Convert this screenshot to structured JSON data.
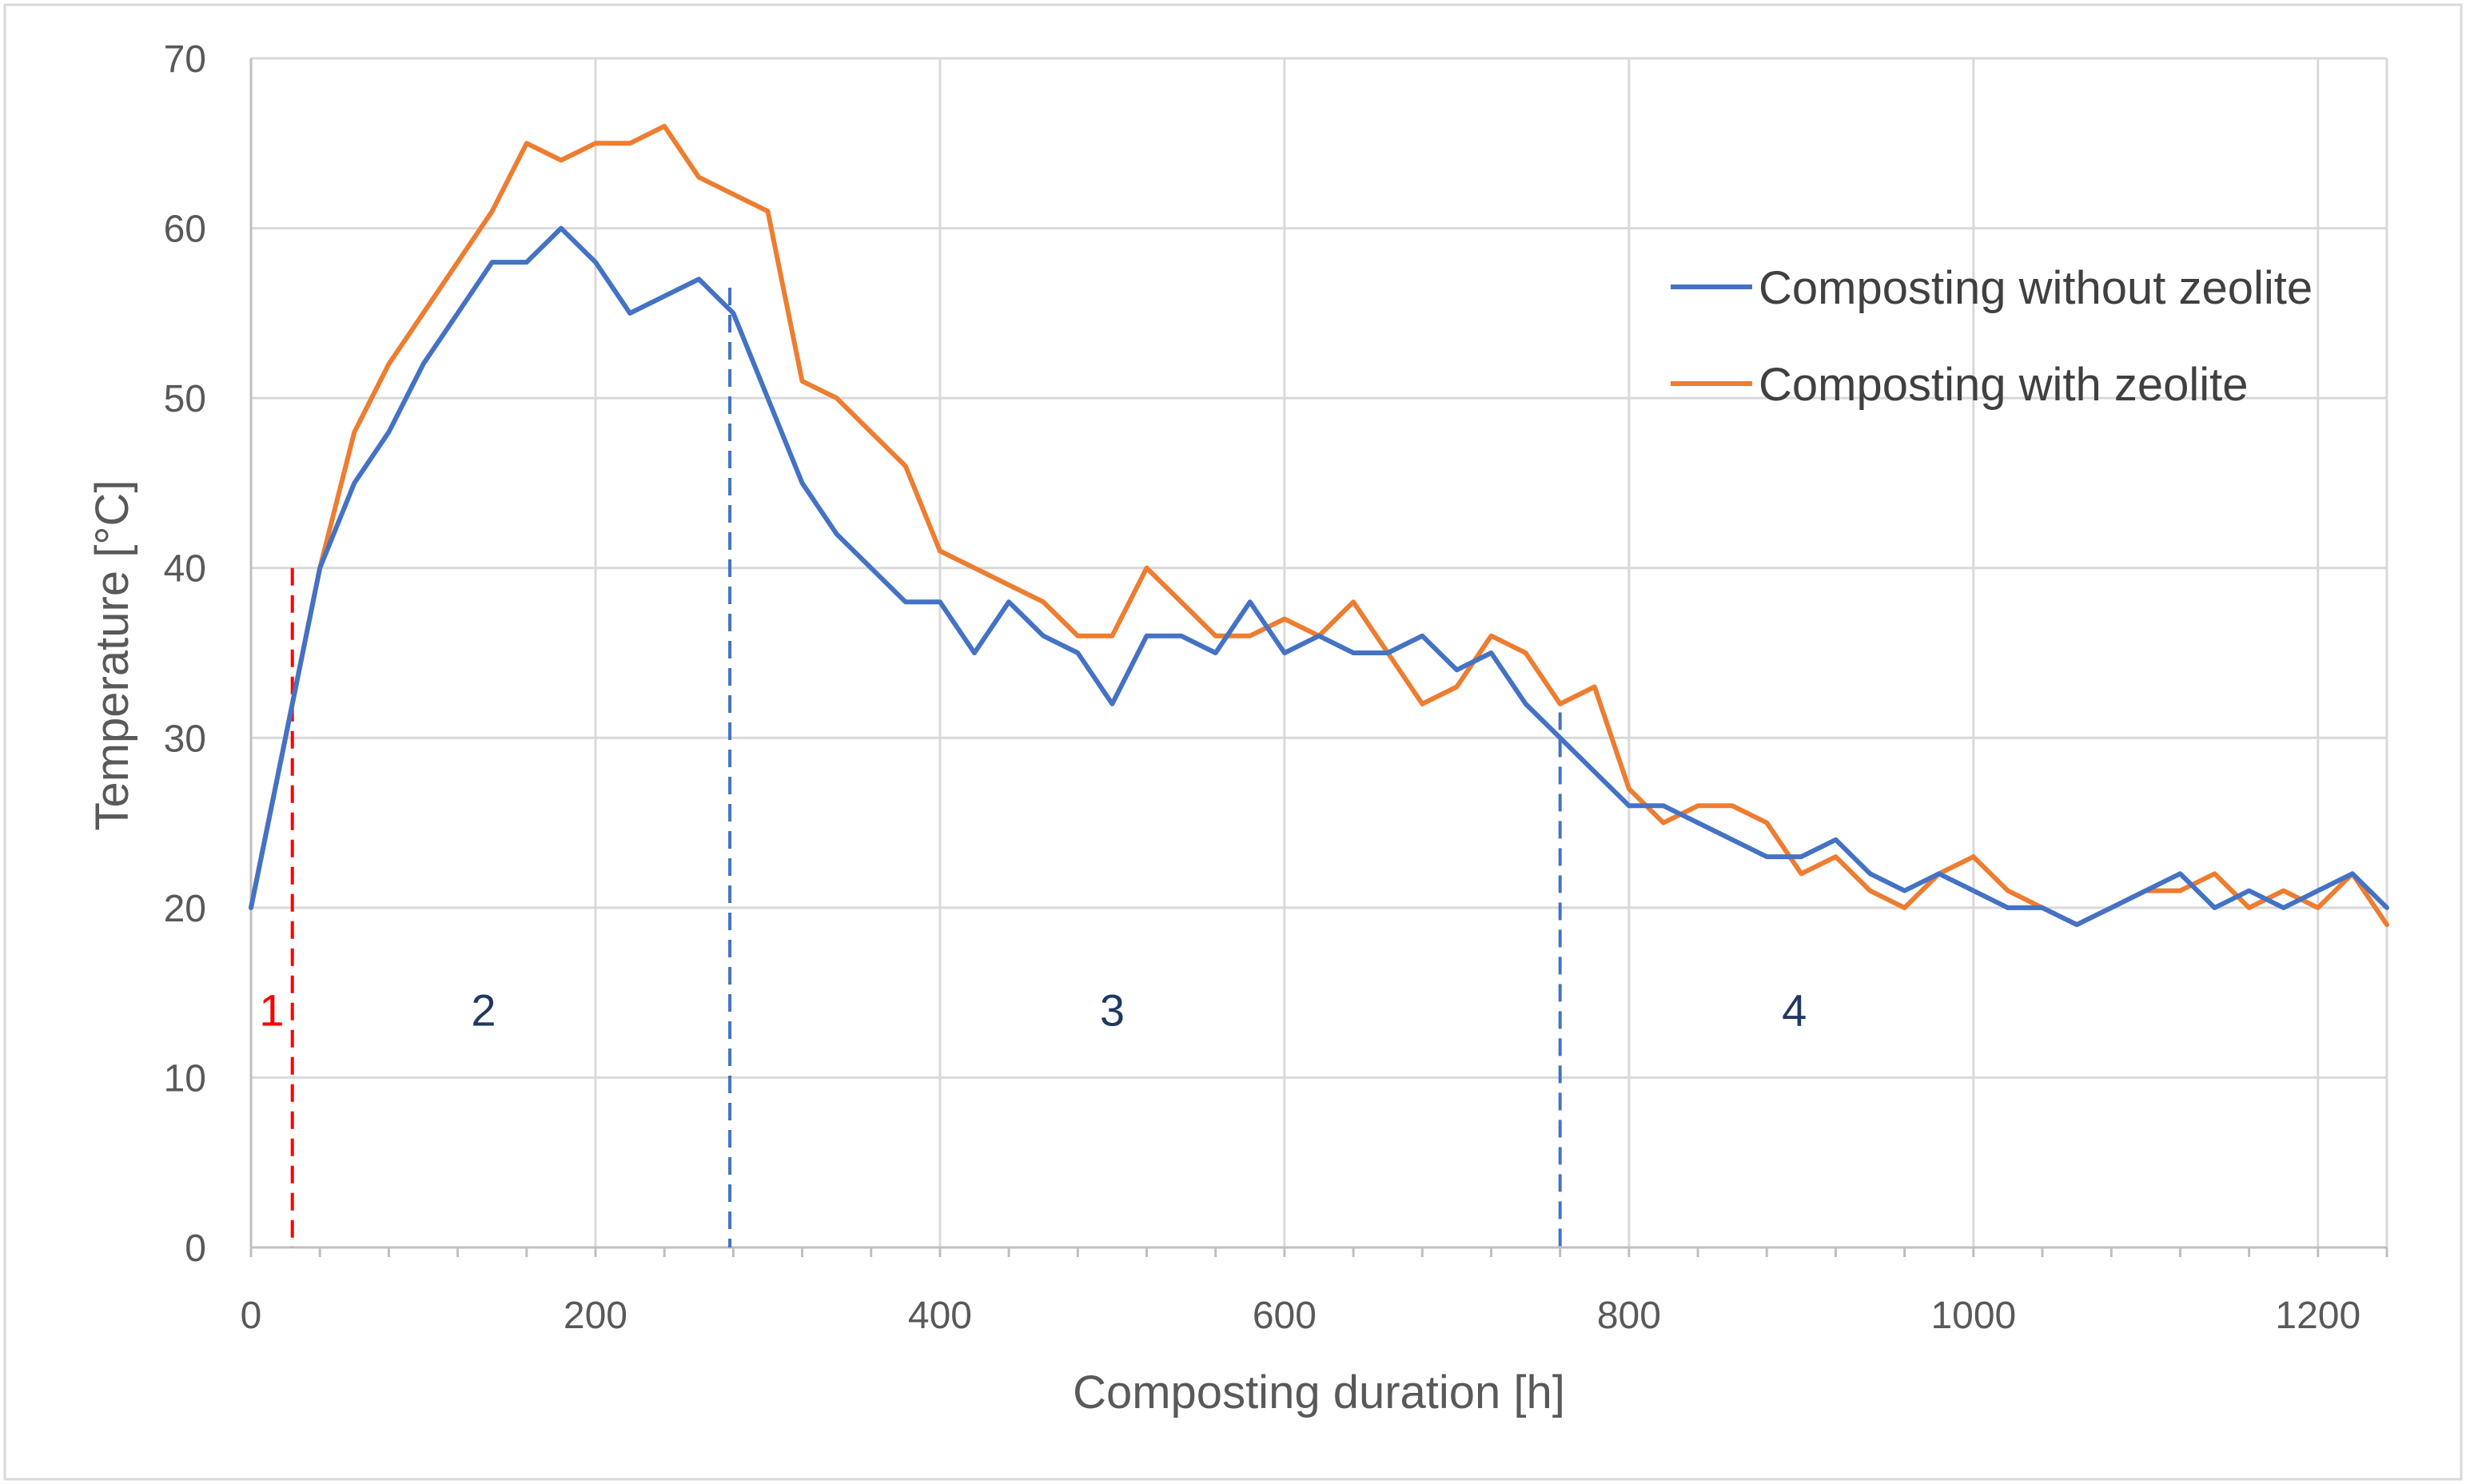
{
  "chart_data": {
    "type": "line",
    "title": "",
    "xlabel": "Composting duration [h]",
    "ylabel": "Temperature  [°C]",
    "xlim": [
      0,
      1240
    ],
    "ylim": [
      0,
      70
    ],
    "xticks": [
      0,
      200,
      400,
      600,
      800,
      1000,
      1200
    ],
    "yticks": [
      0,
      10,
      20,
      30,
      40,
      50,
      60,
      70
    ],
    "xtick_labels": [
      "0",
      "200",
      "400",
      "600",
      "800",
      "1000",
      "1200"
    ],
    "ytick_labels": [
      "0",
      "10",
      "20",
      "30",
      "40",
      "50",
      "60",
      "70"
    ],
    "grid": true,
    "legend_position": "right-upper",
    "x": [
      0,
      20,
      40,
      60,
      80,
      100,
      120,
      140,
      160,
      180,
      200,
      220,
      240,
      260,
      280,
      300,
      320,
      340,
      360,
      380,
      400,
      420,
      440,
      460,
      480,
      500,
      520,
      540,
      560,
      580,
      600,
      620,
      640,
      660,
      680,
      700,
      720,
      740,
      760,
      780,
      800,
      820,
      840,
      860,
      880,
      900,
      920,
      940,
      960,
      980,
      1000,
      1020,
      1040,
      1060,
      1080,
      1100,
      1120,
      1140,
      1160,
      1180,
      1200,
      1220,
      1240
    ],
    "series": [
      {
        "name": "Composting without zeolite",
        "color": "#4472C4",
        "values": [
          20,
          30,
          40,
          45,
          48,
          52,
          55,
          58,
          58,
          60,
          58,
          55,
          56,
          57,
          55,
          50,
          45,
          42,
          40,
          38,
          38,
          35,
          38,
          36,
          35,
          32,
          36,
          36,
          35,
          38,
          35,
          36,
          35,
          35,
          36,
          34,
          35,
          32,
          30,
          28,
          26,
          26,
          25,
          24,
          23,
          23,
          24,
          22,
          21,
          22,
          21,
          20,
          20,
          19,
          20,
          21,
          22,
          20,
          21,
          20,
          21,
          22,
          20
        ]
      },
      {
        "name": "Composting with zeolite",
        "color": "#ED7D31",
        "values": [
          20,
          30,
          40,
          48,
          52,
          55,
          58,
          61,
          65,
          64,
          65,
          65,
          66,
          63,
          62,
          61,
          51,
          50,
          48,
          46,
          41,
          40,
          39,
          38,
          36,
          36,
          40,
          38,
          36,
          36,
          37,
          36,
          38,
          35,
          32,
          33,
          36,
          35,
          32,
          33,
          27,
          25,
          26,
          26,
          25,
          22,
          23,
          21,
          20,
          22,
          23,
          21,
          20,
          19,
          20,
          21,
          21,
          22,
          20,
          21,
          20,
          22,
          19
        ]
      }
    ],
    "phase_markers": [
      {
        "x": 24,
        "y_top": 40,
        "color": "#FF0000"
      },
      {
        "x": 278,
        "y_top": 56.5,
        "color": "#4472C4"
      },
      {
        "x": 760,
        "y_top": 31.5,
        "color": "#4472C4"
      }
    ],
    "phase_labels": [
      {
        "text": "1",
        "x": 12,
        "y": 14,
        "color": "#FF0000"
      },
      {
        "text": "2",
        "x": 135,
        "y": 14,
        "color": "#1F3864"
      },
      {
        "text": "3",
        "x": 500,
        "y": 14,
        "color": "#1F3864"
      },
      {
        "text": "4",
        "x": 896,
        "y": 14,
        "color": "#1F3864"
      }
    ]
  }
}
